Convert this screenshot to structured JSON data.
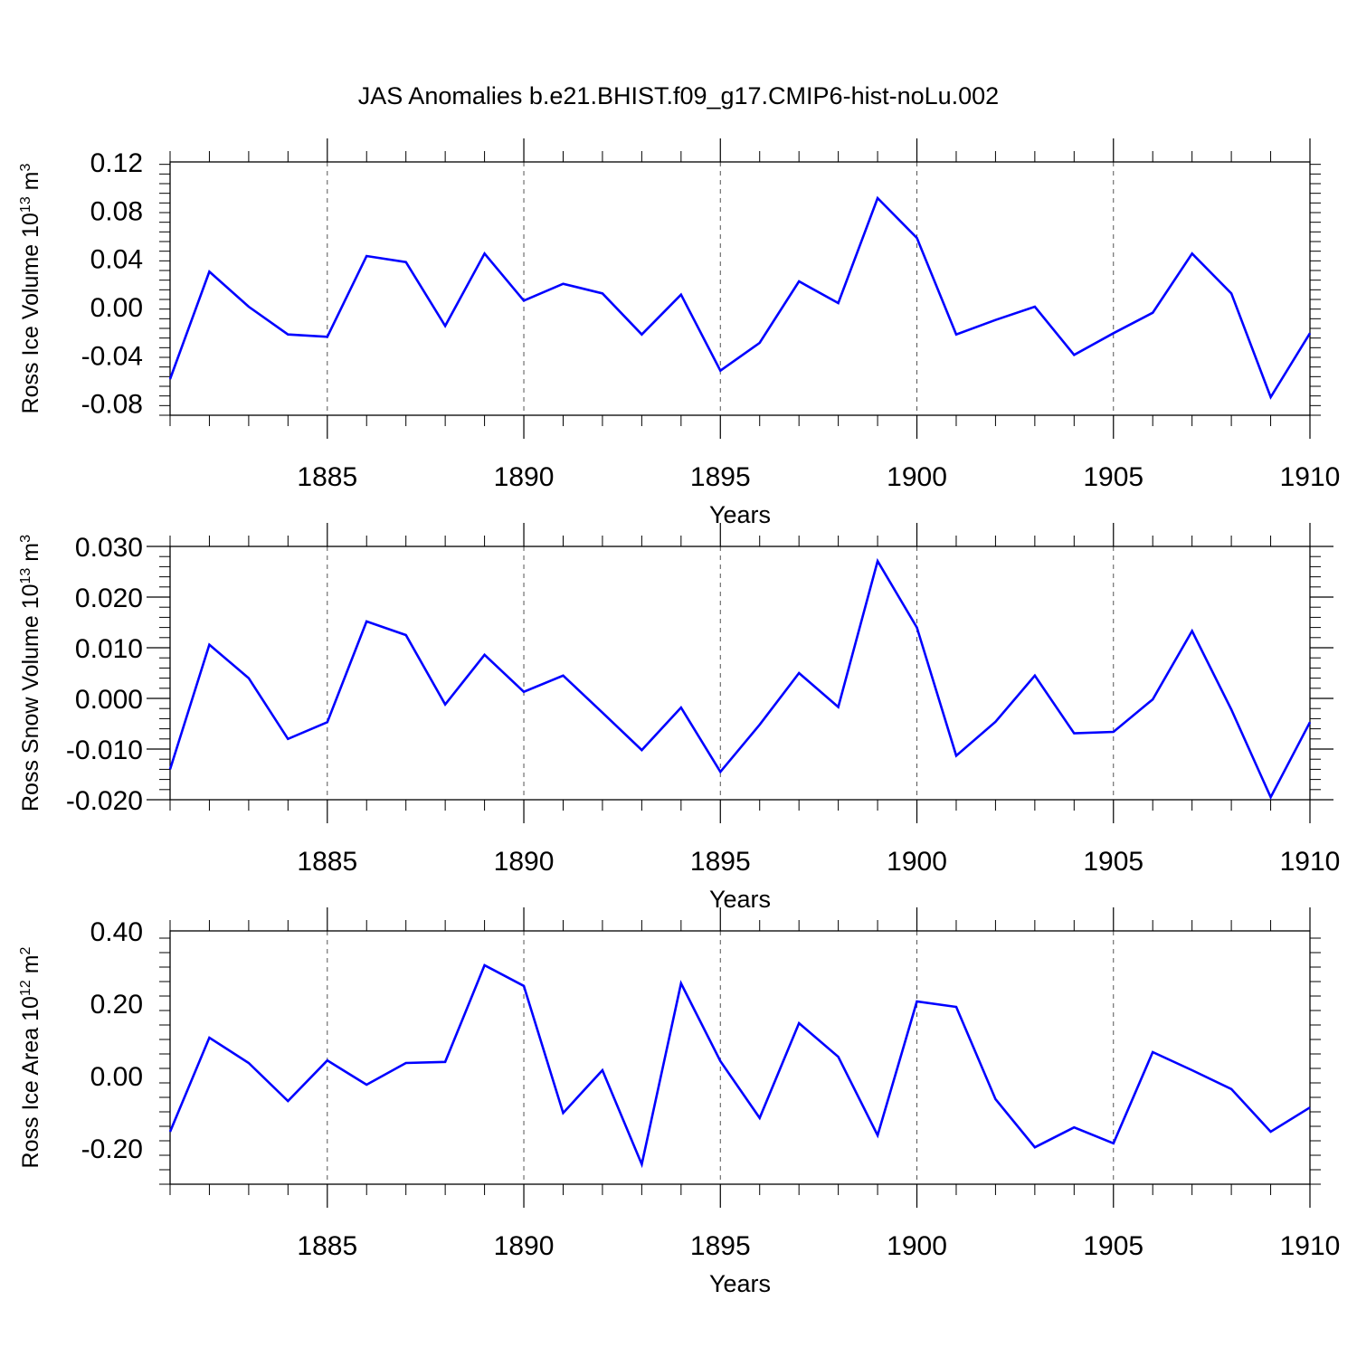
{
  "title": "JAS Anomalies b.e21.BHIST.f09_g17.CMIP6-hist-noLu.002",
  "colors": {
    "line": "#0000ff",
    "axis": "#000000",
    "grid": "#555555"
  },
  "chart_data": [
    {
      "type": "line",
      "ylabel_main": "Ross Ice Volume 10",
      "ylabel_exp": "13",
      "ylabel_unit": " m",
      "ylabel_unit_exp": "3",
      "xlabel": "Years",
      "xlim": [
        1881,
        1910
      ],
      "ylim": [
        -0.09,
        0.12
      ],
      "yticks": [
        0.12,
        0.08,
        0.04,
        0.0,
        -0.04,
        -0.08
      ],
      "ytick_labels": [
        "0.12",
        "0.08",
        "0.04",
        "0.00",
        "-0.04",
        "-0.08"
      ],
      "xticks": [
        1885,
        1890,
        1895,
        1900,
        1905,
        1910
      ],
      "xtick_labels": [
        "1885",
        "1890",
        "1895",
        "1900",
        "1905",
        "1910"
      ],
      "grid": "vertical dashed at major x ticks",
      "x": [
        1881,
        1882,
        1883,
        1884,
        1885,
        1886,
        1887,
        1888,
        1889,
        1890,
        1891,
        1892,
        1893,
        1894,
        1895,
        1896,
        1897,
        1898,
        1899,
        1900,
        1901,
        1902,
        1903,
        1904,
        1905,
        1906,
        1907,
        1908,
        1909,
        1910
      ],
      "values": [
        -0.06,
        0.029,
        0.0,
        -0.023,
        -0.025,
        0.042,
        0.037,
        -0.016,
        0.044,
        0.005,
        0.019,
        0.011,
        -0.023,
        0.01,
        -0.053,
        -0.03,
        0.021,
        0.003,
        0.09,
        0.057,
        -0.023,
        -0.011,
        0.0,
        -0.04,
        -0.022,
        -0.005,
        0.044,
        0.011,
        -0.075,
        -0.022
      ]
    },
    {
      "type": "line",
      "ylabel_main": "Ross Snow Volume 10",
      "ylabel_exp": "13",
      "ylabel_unit": " m",
      "ylabel_unit_exp": "3",
      "xlabel": "Years",
      "xlim": [
        1881,
        1910
      ],
      "ylim": [
        -0.02,
        0.03
      ],
      "yticks": [
        0.03,
        0.02,
        0.01,
        0.0,
        -0.01,
        -0.02
      ],
      "ytick_labels": [
        "0.030",
        "0.020",
        "0.010",
        "0.000",
        "-0.010",
        "-0.020"
      ],
      "xticks": [
        1885,
        1890,
        1895,
        1900,
        1905,
        1910
      ],
      "xtick_labels": [
        "1885",
        "1890",
        "1895",
        "1900",
        "1905",
        "1910"
      ],
      "grid": "vertical dashed at major x ticks",
      "x": [
        1881,
        1882,
        1883,
        1884,
        1885,
        1886,
        1887,
        1888,
        1889,
        1890,
        1891,
        1892,
        1893,
        1894,
        1895,
        1896,
        1897,
        1898,
        1899,
        1900,
        1901,
        1902,
        1903,
        1904,
        1905,
        1906,
        1907,
        1908,
        1909,
        1910
      ],
      "values": [
        -0.014,
        0.0106,
        0.004,
        -0.008,
        -0.0047,
        0.0152,
        0.0125,
        -0.0012,
        0.0086,
        0.0013,
        0.0045,
        -0.0028,
        -0.0102,
        -0.0018,
        -0.0145,
        -0.0052,
        0.005,
        -0.0017,
        0.0271,
        0.014,
        -0.0113,
        -0.0046,
        0.0045,
        -0.0069,
        -0.0066,
        -0.0002,
        0.0133,
        -0.0022,
        -0.0195,
        -0.0047
      ]
    },
    {
      "type": "line",
      "ylabel_main": "Ross Ice Area 10",
      "ylabel_exp": "12",
      "ylabel_unit": " m",
      "ylabel_unit_exp": "2",
      "xlabel": "Years",
      "xlim": [
        1881,
        1910
      ],
      "ylim": [
        -0.3,
        0.4
      ],
      "yticks": [
        0.4,
        0.2,
        0.0,
        -0.2
      ],
      "ytick_labels": [
        "0.40",
        "0.20",
        "0.00",
        "-0.20"
      ],
      "xticks": [
        1885,
        1890,
        1895,
        1900,
        1905,
        1910
      ],
      "xtick_labels": [
        "1885",
        "1890",
        "1895",
        "1900",
        "1905",
        "1910"
      ],
      "grid": "vertical dashed at major x ticks",
      "x": [
        1881,
        1882,
        1883,
        1884,
        1885,
        1886,
        1887,
        1888,
        1889,
        1890,
        1891,
        1892,
        1893,
        1894,
        1895,
        1896,
        1897,
        1898,
        1899,
        1900,
        1901,
        1902,
        1903,
        1904,
        1905,
        1906,
        1907,
        1908,
        1909,
        1910
      ],
      "values": [
        -0.155,
        0.105,
        0.035,
        -0.07,
        0.042,
        -0.025,
        0.035,
        0.038,
        0.305,
        0.248,
        -0.103,
        0.015,
        -0.245,
        0.255,
        0.04,
        -0.117,
        0.145,
        0.052,
        -0.165,
        0.205,
        0.19,
        -0.065,
        -0.198,
        -0.143,
        -0.187,
        0.065,
        0.015,
        -0.037,
        -0.155,
        -0.088
      ]
    }
  ]
}
